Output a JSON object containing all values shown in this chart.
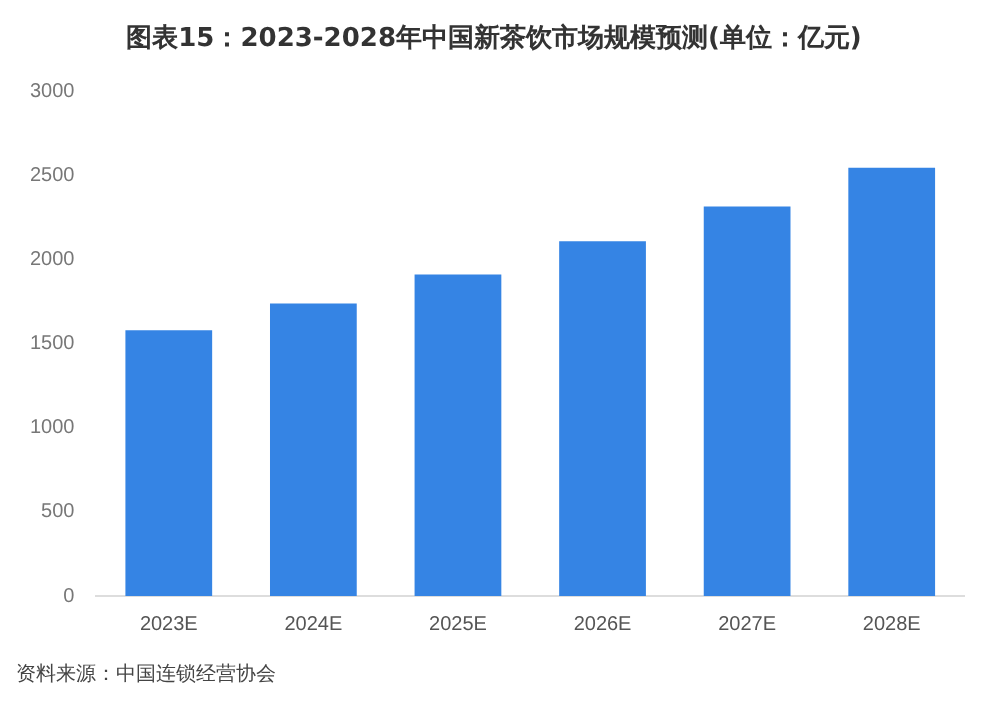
{
  "chart_data": {
    "type": "bar",
    "title": "图表15：2023-2028年中国新茶饮市场规模预测(单位：亿元)",
    "categories": [
      "2023E",
      "2024E",
      "2025E",
      "2026E",
      "2027E",
      "2028E"
    ],
    "values": [
      1580,
      1738,
      1910,
      2109,
      2315,
      2545
    ],
    "color": "#3584e4",
    "ylim": [
      0,
      3000
    ],
    "yticks": [
      0,
      500,
      1000,
      1500,
      2000,
      2500,
      3000
    ],
    "grid": false,
    "legend": false,
    "annotations": [
      "资料来源：中国连锁经营协会"
    ]
  }
}
